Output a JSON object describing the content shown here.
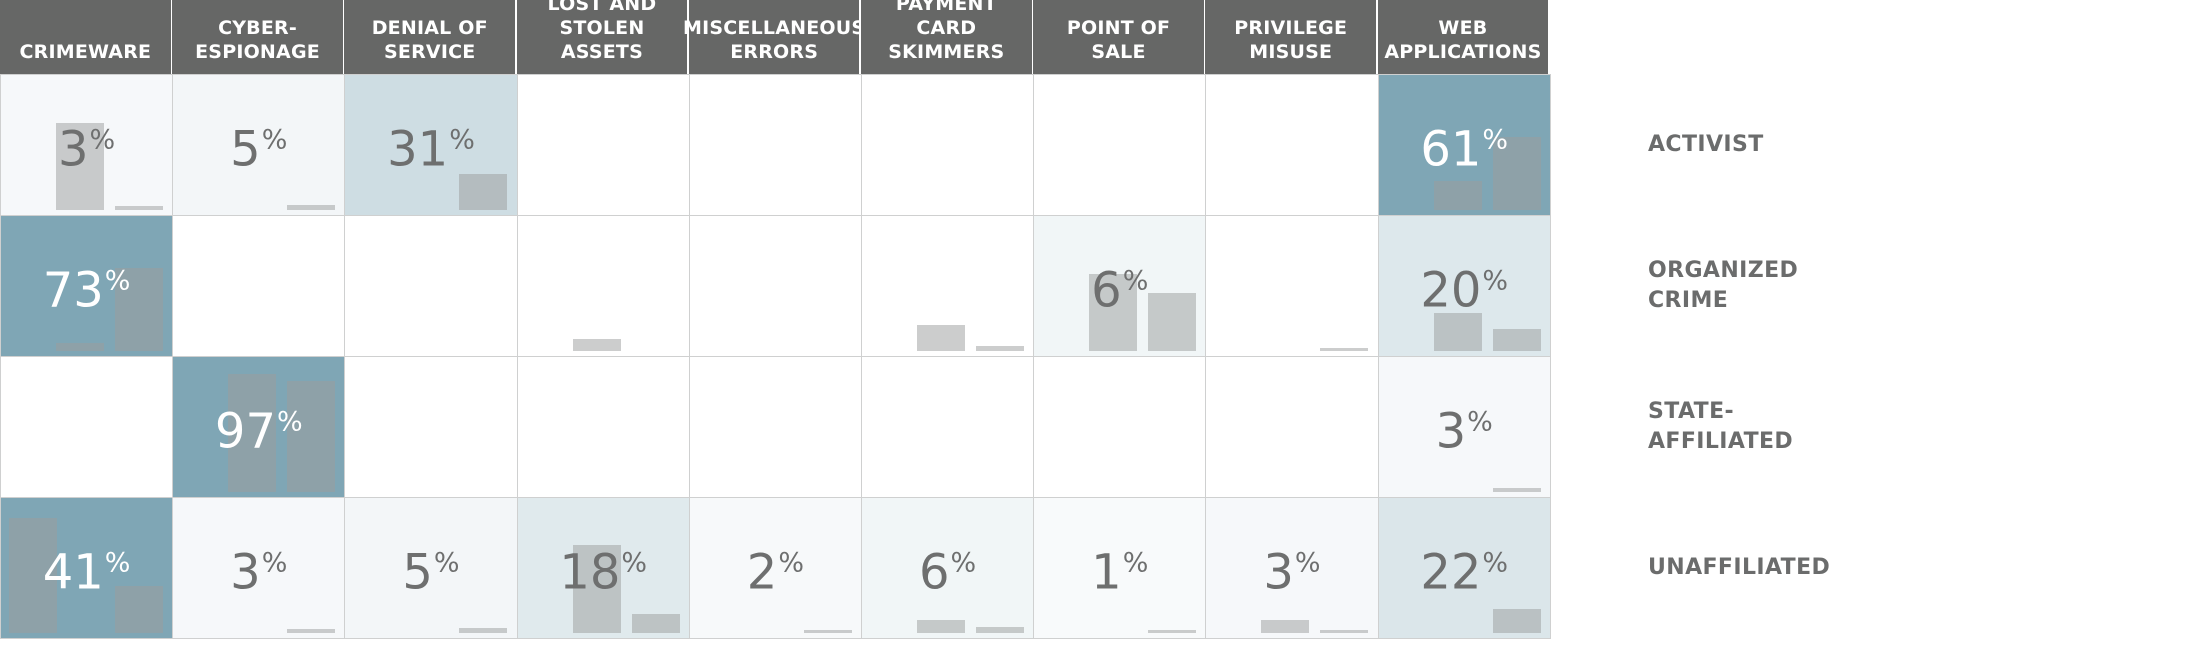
{
  "chart_data": {
    "type": "heatmap",
    "columns": [
      [
        "CRIMEWARE"
      ],
      [
        "CYBER-",
        "ESPIONAGE"
      ],
      [
        "DENIAL OF",
        "SERVICE"
      ],
      [
        "LOST AND",
        "STOLEN ASSETS"
      ],
      [
        "MISCELLANEOUS",
        "ERRORS"
      ],
      [
        "PAYMENT",
        "CARD SKIMMERS"
      ],
      [
        "POINT OF",
        "SALE"
      ],
      [
        "PRIVILEGE",
        "MISUSE"
      ],
      [
        "WEB",
        "APPLICATIONS"
      ]
    ],
    "rows": [
      [
        "ACTIVIST"
      ],
      [
        "ORGANIZED",
        "CRIME"
      ],
      [
        "STATE-",
        "AFFILIATED"
      ],
      [
        "UNAFFILIATED"
      ]
    ],
    "values": [
      [
        3,
        5,
        31,
        null,
        null,
        null,
        null,
        null,
        61
      ],
      [
        73,
        null,
        null,
        null,
        null,
        null,
        6,
        null,
        20
      ],
      [
        null,
        97,
        null,
        null,
        null,
        null,
        null,
        null,
        3
      ],
      [
        41,
        3,
        5,
        18,
        2,
        6,
        1,
        3,
        22
      ]
    ],
    "bar_values": [
      [
        [
          0.68,
          0.03
        ],
        [
          0,
          0.04
        ],
        [
          0,
          0.28
        ],
        [
          0,
          0
        ],
        [
          0,
          0
        ],
        [
          0,
          0
        ],
        [
          0,
          0
        ],
        [
          0,
          0
        ],
        [
          0.23,
          0.57
        ]
      ],
      [
        [
          0.06,
          0.65
        ],
        [
          0,
          0
        ],
        [
          0,
          0
        ],
        [
          0.09,
          0
        ],
        [
          0,
          0
        ],
        [
          0.2,
          0.04
        ],
        [
          0.6,
          0.45
        ],
        [
          0,
          0.02
        ],
        [
          0.3,
          0.17
        ]
      ],
      [
        [
          0,
          0
        ],
        [
          0.92,
          0.87
        ],
        [
          0,
          0
        ],
        [
          0,
          0
        ],
        [
          0,
          0
        ],
        [
          0,
          0
        ],
        [
          0,
          0
        ],
        [
          0,
          0
        ],
        [
          0,
          0.03
        ]
      ],
      [
        [
          0.9,
          0.37
        ],
        [
          0,
          0.03
        ],
        [
          0,
          0.04
        ],
        [
          0.69,
          0.15
        ],
        [
          0,
          0.02
        ],
        [
          0.1,
          0.05
        ],
        [
          0,
          0.01
        ],
        [
          0.1,
          0.02
        ],
        [
          0,
          0.19
        ]
      ]
    ],
    "percent_symbol": "%",
    "colors": {
      "header_bg": "#666766",
      "header_text": "#ffffff",
      "grid": "#cfd0d0",
      "bar": "#9a9c9c",
      "text_dark": "#6e6f6f",
      "text_light": "#ffffff",
      "row_label": "#6b6c6c",
      "scale": [
        "#ffffff",
        "#7fa6b5"
      ]
    }
  }
}
